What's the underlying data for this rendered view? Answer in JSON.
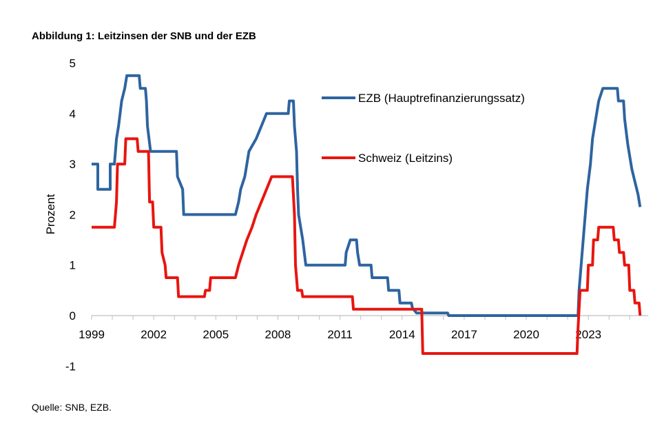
{
  "title": "Abbildung 1: Leitzinsen der SNB und der EZB",
  "source": "Quelle: SNB, EZB.",
  "chart_data": {
    "type": "line",
    "title": "Abbildung 1: Leitzinsen der SNB und der EZB",
    "xlabel": "",
    "ylabel": "Prozent",
    "xlim": [
      1999,
      2025.9
    ],
    "ylim": [
      -1,
      5
    ],
    "x_ticks": [
      "1999",
      "2002",
      "2005",
      "2008",
      "2011",
      "2014",
      "2017",
      "2020",
      "2023"
    ],
    "y_ticks": [
      "-1",
      "0",
      "1",
      "2",
      "3",
      "4",
      "5"
    ],
    "grid": false,
    "legend": "inside-top-right",
    "series": [
      {
        "name": "EZB (Hauptrefinanzierungssatz)",
        "color": "#2e64a0",
        "points": [
          [
            1999.0,
            3.0
          ],
          [
            1999.3,
            3.0
          ],
          [
            1999.3,
            2.5
          ],
          [
            1999.9,
            2.5
          ],
          [
            1999.9,
            3.0
          ],
          [
            2000.1,
            3.0
          ],
          [
            2000.15,
            3.25
          ],
          [
            2000.2,
            3.5
          ],
          [
            2000.3,
            3.75
          ],
          [
            2000.45,
            4.25
          ],
          [
            2000.6,
            4.5
          ],
          [
            2000.7,
            4.75
          ],
          [
            2001.3,
            4.75
          ],
          [
            2001.35,
            4.5
          ],
          [
            2001.6,
            4.5
          ],
          [
            2001.65,
            4.25
          ],
          [
            2001.7,
            3.75
          ],
          [
            2001.85,
            3.25
          ],
          [
            2003.1,
            3.25
          ],
          [
            2003.15,
            2.75
          ],
          [
            2003.4,
            2.5
          ],
          [
            2003.45,
            2.0
          ],
          [
            2005.95,
            2.0
          ],
          [
            2006.1,
            2.25
          ],
          [
            2006.2,
            2.5
          ],
          [
            2006.4,
            2.75
          ],
          [
            2006.5,
            3.0
          ],
          [
            2006.6,
            3.25
          ],
          [
            2006.95,
            3.5
          ],
          [
            2007.2,
            3.75
          ],
          [
            2007.45,
            4.0
          ],
          [
            2008.5,
            4.0
          ],
          [
            2008.55,
            4.25
          ],
          [
            2008.75,
            4.25
          ],
          [
            2008.8,
            3.75
          ],
          [
            2008.9,
            3.25
          ],
          [
            2008.95,
            2.5
          ],
          [
            2009.0,
            2.0
          ],
          [
            2009.2,
            1.5
          ],
          [
            2009.35,
            1.0
          ],
          [
            2011.25,
            1.0
          ],
          [
            2011.3,
            1.25
          ],
          [
            2011.5,
            1.5
          ],
          [
            2011.8,
            1.5
          ],
          [
            2011.85,
            1.25
          ],
          [
            2011.95,
            1.0
          ],
          [
            2012.5,
            1.0
          ],
          [
            2012.55,
            0.75
          ],
          [
            2013.3,
            0.75
          ],
          [
            2013.35,
            0.5
          ],
          [
            2013.85,
            0.5
          ],
          [
            2013.9,
            0.25
          ],
          [
            2014.45,
            0.25
          ],
          [
            2014.5,
            0.15
          ],
          [
            2014.7,
            0.05
          ],
          [
            2016.2,
            0.05
          ],
          [
            2016.25,
            0.0
          ],
          [
            2022.5,
            0.0
          ],
          [
            2022.55,
            0.5
          ],
          [
            2022.7,
            1.25
          ],
          [
            2022.85,
            2.0
          ],
          [
            2022.95,
            2.5
          ],
          [
            2023.1,
            3.0
          ],
          [
            2023.2,
            3.5
          ],
          [
            2023.3,
            3.75
          ],
          [
            2023.4,
            4.0
          ],
          [
            2023.5,
            4.25
          ],
          [
            2023.7,
            4.5
          ],
          [
            2024.4,
            4.5
          ],
          [
            2024.45,
            4.25
          ],
          [
            2024.7,
            4.25
          ],
          [
            2024.75,
            3.9
          ],
          [
            2024.9,
            3.4
          ],
          [
            2025.1,
            2.9
          ],
          [
            2025.25,
            2.65
          ],
          [
            2025.4,
            2.4
          ],
          [
            2025.5,
            2.15
          ]
        ]
      },
      {
        "name": "Schweiz (Leitzins)",
        "color": "#e8150f",
        "points": [
          [
            1999.0,
            1.75
          ],
          [
            2000.1,
            1.75
          ],
          [
            2000.2,
            2.25
          ],
          [
            2000.25,
            3.0
          ],
          [
            2000.6,
            3.0
          ],
          [
            2000.65,
            3.5
          ],
          [
            2001.2,
            3.5
          ],
          [
            2001.25,
            3.25
          ],
          [
            2001.75,
            3.25
          ],
          [
            2001.8,
            2.25
          ],
          [
            2001.95,
            2.25
          ],
          [
            2002.0,
            1.75
          ],
          [
            2002.35,
            1.75
          ],
          [
            2002.4,
            1.25
          ],
          [
            2002.55,
            1.0
          ],
          [
            2002.6,
            0.75
          ],
          [
            2003.15,
            0.75
          ],
          [
            2003.2,
            0.375
          ],
          [
            2004.45,
            0.375
          ],
          [
            2004.5,
            0.5
          ],
          [
            2004.7,
            0.5
          ],
          [
            2004.75,
            0.75
          ],
          [
            2005.95,
            0.75
          ],
          [
            2006.1,
            1.0
          ],
          [
            2006.3,
            1.25
          ],
          [
            2006.5,
            1.5
          ],
          [
            2006.75,
            1.75
          ],
          [
            2006.95,
            2.0
          ],
          [
            2007.2,
            2.25
          ],
          [
            2007.45,
            2.5
          ],
          [
            2007.7,
            2.75
          ],
          [
            2008.7,
            2.75
          ],
          [
            2008.8,
            2.0
          ],
          [
            2008.85,
            1.0
          ],
          [
            2008.95,
            0.5
          ],
          [
            2009.15,
            0.5
          ],
          [
            2009.2,
            0.375
          ],
          [
            2011.6,
            0.375
          ],
          [
            2011.65,
            0.125
          ],
          [
            2014.95,
            0.125
          ],
          [
            2015.0,
            -0.75
          ],
          [
            2022.45,
            -0.75
          ],
          [
            2022.5,
            -0.25
          ],
          [
            2022.6,
            0.5
          ],
          [
            2022.95,
            0.5
          ],
          [
            2023.0,
            1.0
          ],
          [
            2023.2,
            1.0
          ],
          [
            2023.25,
            1.5
          ],
          [
            2023.45,
            1.5
          ],
          [
            2023.5,
            1.75
          ],
          [
            2024.2,
            1.75
          ],
          [
            2024.25,
            1.5
          ],
          [
            2024.45,
            1.5
          ],
          [
            2024.5,
            1.25
          ],
          [
            2024.7,
            1.25
          ],
          [
            2024.75,
            1.0
          ],
          [
            2024.95,
            1.0
          ],
          [
            2025.0,
            0.5
          ],
          [
            2025.2,
            0.5
          ],
          [
            2025.25,
            0.25
          ],
          [
            2025.45,
            0.25
          ],
          [
            2025.5,
            0.0
          ]
        ]
      }
    ]
  }
}
